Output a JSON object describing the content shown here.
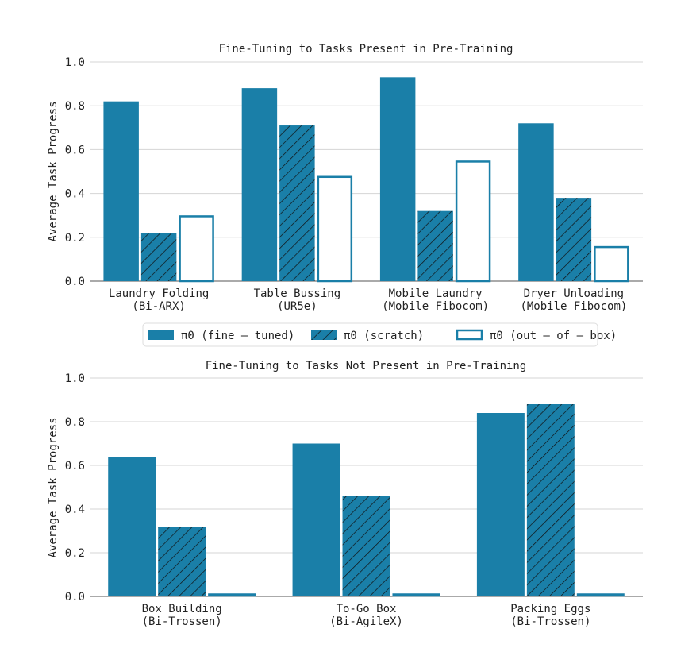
{
  "colors": {
    "accent": "#1a7fa8",
    "hatch": "#111111",
    "grid": "#d4d4d4"
  },
  "legend": {
    "items": [
      {
        "symbol": "π0",
        "text": " (fine – tuned)",
        "style": "solid"
      },
      {
        "symbol": "π0",
        "text": " (scratch)",
        "style": "hatched"
      },
      {
        "symbol": "π0",
        "text": " (out – of – box)",
        "style": "outline"
      }
    ]
  },
  "chart_data": [
    {
      "type": "bar",
      "title": "Fine-Tuning to Tasks Present in Pre-Training",
      "ylabel": "Average Task Progress",
      "ylim": [
        0,
        1.0
      ],
      "yticks": [
        "0.0",
        "0.2",
        "0.4",
        "0.6",
        "0.8",
        "1.0"
      ],
      "grid": true,
      "categories": [
        [
          "Laundry Folding",
          "(Bi-ARX)"
        ],
        [
          "Table Bussing",
          "(UR5e)"
        ],
        [
          "Mobile Laundry",
          "(Mobile Fibocom)"
        ],
        [
          "Dryer Unloading",
          "(Mobile Fibocom)"
        ]
      ],
      "series": [
        {
          "name": "π0 (fine-tuned)",
          "style": "solid",
          "values": [
            0.82,
            0.88,
            0.93,
            0.72
          ]
        },
        {
          "name": "π0 (scratch)",
          "style": "hatched",
          "values": [
            0.22,
            0.71,
            0.32,
            0.38
          ]
        },
        {
          "name": "π0 (out-of-box)",
          "style": "outline",
          "values": [
            0.3,
            0.48,
            0.55,
            0.16
          ]
        }
      ]
    },
    {
      "type": "bar",
      "title": "Fine-Tuning to Tasks Not Present in Pre-Training",
      "ylabel": "Average Task Progress",
      "ylim": [
        0,
        1.0
      ],
      "yticks": [
        "0.0",
        "0.2",
        "0.4",
        "0.6",
        "0.8",
        "1.0"
      ],
      "grid": true,
      "categories": [
        [
          "Box Building",
          "(Bi-Trossen)"
        ],
        [
          "To-Go Box",
          "(Bi-AgileX)"
        ],
        [
          "Packing Eggs",
          "(Bi-Trossen)"
        ]
      ],
      "series": [
        {
          "name": "π0 (fine-tuned)",
          "style": "solid",
          "values": [
            0.64,
            0.7,
            0.84
          ]
        },
        {
          "name": "π0 (scratch)",
          "style": "hatched",
          "values": [
            0.32,
            0.46,
            0.88
          ]
        },
        {
          "name": "π0 (out-of-box)",
          "style": "outline",
          "values": [
            0.0,
            0.0,
            0.0
          ]
        }
      ]
    }
  ]
}
